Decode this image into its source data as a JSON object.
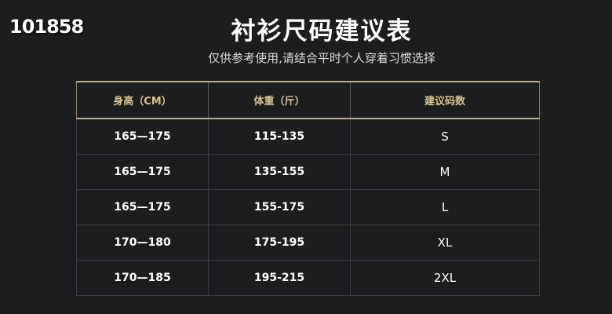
{
  "corner_text": "101858",
  "title": "衬衫尺码建议表",
  "subtitle": "仅供参考使用,请结合平时个人穿着习惯选择",
  "table": {
    "headers": [
      "身高（CM）",
      "体重（斤）",
      "建议码数"
    ],
    "rows": [
      [
        "165—175",
        "115-135",
        "S"
      ],
      [
        "165—175",
        "135-155",
        "M"
      ],
      [
        "165—175",
        "155-175",
        "L"
      ],
      [
        "170—180",
        "175-195",
        "XL"
      ],
      [
        "170—185",
        "195-215",
        "2XL"
      ]
    ]
  },
  "colors": {
    "background": "#1c1d1f",
    "header_text": "#d8c489",
    "header_border": "#b9ad8e"
  }
}
